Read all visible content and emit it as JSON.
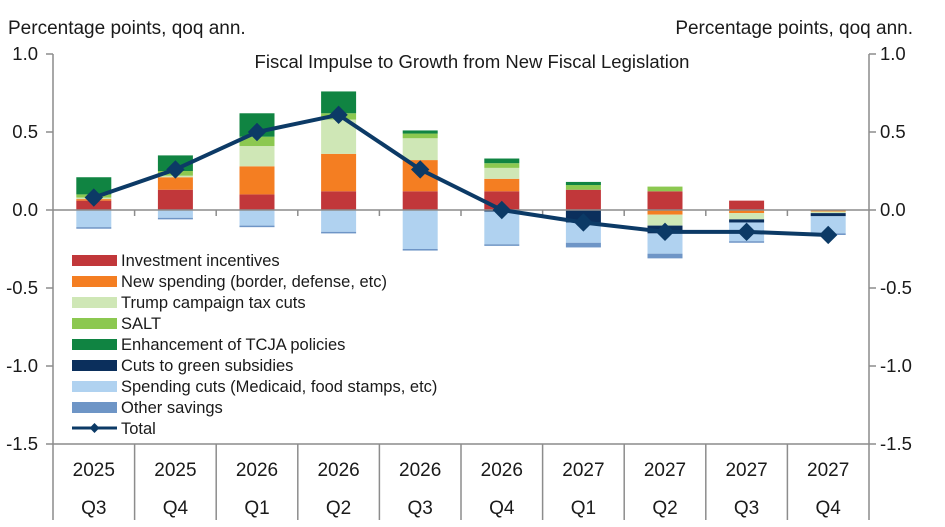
{
  "chart_data": {
    "type": "bar",
    "stacked": true,
    "title": "Fiscal Impulse to Growth from New Fiscal Legislation",
    "ylabel_left": "Percentage points, qoq ann.",
    "ylabel_right": "Percentage points, qoq ann.",
    "xlabel": "",
    "ylim": [
      -1.5,
      1.0
    ],
    "yticks": [
      1.0,
      0.5,
      0.0,
      -0.5,
      -1.0,
      -1.5
    ],
    "ytick_labels": [
      "1.0",
      "0.5",
      "0.0",
      "-0.5",
      "-1.0",
      "-1.5"
    ],
    "categories": [
      {
        "year": "2025",
        "quarter": "Q3"
      },
      {
        "year": "2025",
        "quarter": "Q4"
      },
      {
        "year": "2026",
        "quarter": "Q1"
      },
      {
        "year": "2026",
        "quarter": "Q2"
      },
      {
        "year": "2026",
        "quarter": "Q3"
      },
      {
        "year": "2026",
        "quarter": "Q4"
      },
      {
        "year": "2027",
        "quarter": "Q1"
      },
      {
        "year": "2027",
        "quarter": "Q2"
      },
      {
        "year": "2027",
        "quarter": "Q3"
      },
      {
        "year": "2027",
        "quarter": "Q4"
      }
    ],
    "series": [
      {
        "name": "Investment incentives",
        "color": "#c1373a",
        "values": [
          0.06,
          0.13,
          0.1,
          0.12,
          0.12,
          0.12,
          0.13,
          0.12,
          0.06,
          0.0
        ]
      },
      {
        "name": "New spending (border, defense, etc)",
        "color": "#f47e22",
        "values": [
          0.01,
          0.08,
          0.18,
          0.24,
          0.2,
          0.08,
          0.0,
          -0.03,
          -0.02,
          -0.01
        ]
      },
      {
        "name": "Trump campaign tax cuts",
        "color": "#cfe7b6",
        "values": [
          0.01,
          0.01,
          0.13,
          0.22,
          0.14,
          0.07,
          0.0,
          -0.07,
          -0.04,
          -0.01
        ]
      },
      {
        "name": "SALT",
        "color": "#8cc850",
        "values": [
          0.02,
          0.03,
          0.06,
          0.04,
          0.03,
          0.03,
          0.03,
          0.03,
          0.0,
          0.0
        ]
      },
      {
        "name": "Enhancement of TCJA policies",
        "color": "#108442",
        "values": [
          0.11,
          0.1,
          0.15,
          0.14,
          0.02,
          0.03,
          0.02,
          0.0,
          0.0,
          0.0
        ]
      },
      {
        "name": "Cuts to green subsidies",
        "color": "#0b2f5c",
        "values": [
          0.0,
          0.0,
          0.0,
          0.0,
          0.0,
          -0.01,
          -0.08,
          -0.05,
          -0.02,
          -0.02
        ]
      },
      {
        "name": "Spending cuts (Medicaid, food stamps, etc)",
        "color": "#b0d2f0",
        "values": [
          -0.11,
          -0.05,
          -0.1,
          -0.14,
          -0.25,
          -0.21,
          -0.13,
          -0.13,
          -0.12,
          -0.11
        ]
      },
      {
        "name": "Other savings",
        "color": "#6e95c6",
        "values": [
          -0.01,
          -0.01,
          -0.01,
          -0.01,
          -0.01,
          -0.01,
          -0.03,
          -0.03,
          -0.01,
          -0.01
        ]
      }
    ],
    "total": {
      "name": "Total",
      "color": "#0c3a66",
      "values": [
        0.08,
        0.26,
        0.5,
        0.61,
        0.26,
        0.0,
        -0.08,
        -0.14,
        -0.14,
        -0.16
      ]
    },
    "legend_position": "bottom-left",
    "grid": false
  }
}
